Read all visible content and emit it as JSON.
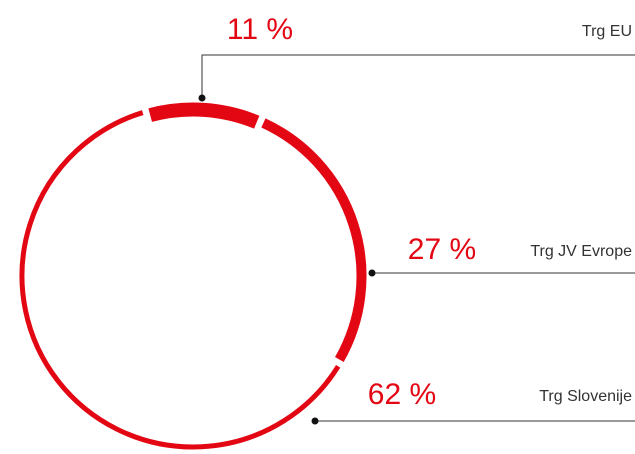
{
  "chart_data": {
    "type": "pie",
    "categories": [
      "Trg EU",
      "Trg JV Evrope",
      "Trg Slovenije"
    ],
    "values": [
      11,
      27,
      62
    ],
    "value_labels": [
      "11 %",
      "27 %",
      "62 %"
    ],
    "color": "#e30613"
  }
}
